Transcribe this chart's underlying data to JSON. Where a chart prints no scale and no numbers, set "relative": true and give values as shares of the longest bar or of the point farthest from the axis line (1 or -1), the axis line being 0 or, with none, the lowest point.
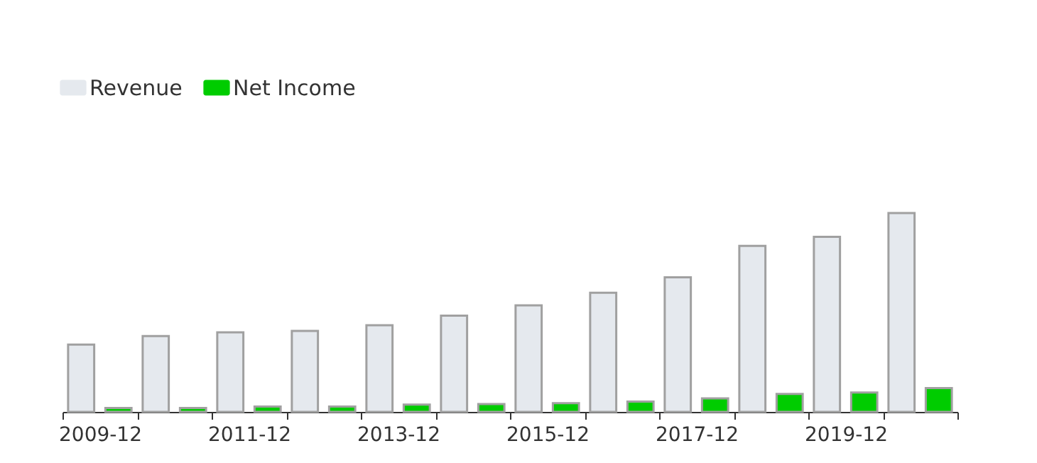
{
  "chart_data": {
    "type": "bar",
    "relative": true,
    "categories": [
      "2009-12",
      null,
      "2011-12",
      null,
      "2013-12",
      null,
      "2015-12",
      null,
      "2017-12",
      null,
      "2019-12",
      null
    ],
    "series": [
      {
        "name": "Revenue",
        "color": "#e5e9ee",
        "values": [
          0.338,
          0.381,
          0.4,
          0.407,
          0.436,
          0.484,
          0.536,
          0.599,
          0.677,
          0.835,
          0.88,
          1
        ]
      },
      {
        "name": "Net Income",
        "color": "#00cc00",
        "values": [
          0.02,
          0.02,
          0.027,
          0.027,
          0.037,
          0.039,
          0.044,
          0.052,
          0.068,
          0.09,
          0.097,
          0.12
        ]
      }
    ],
    "legend": "top",
    "grid": false
  }
}
